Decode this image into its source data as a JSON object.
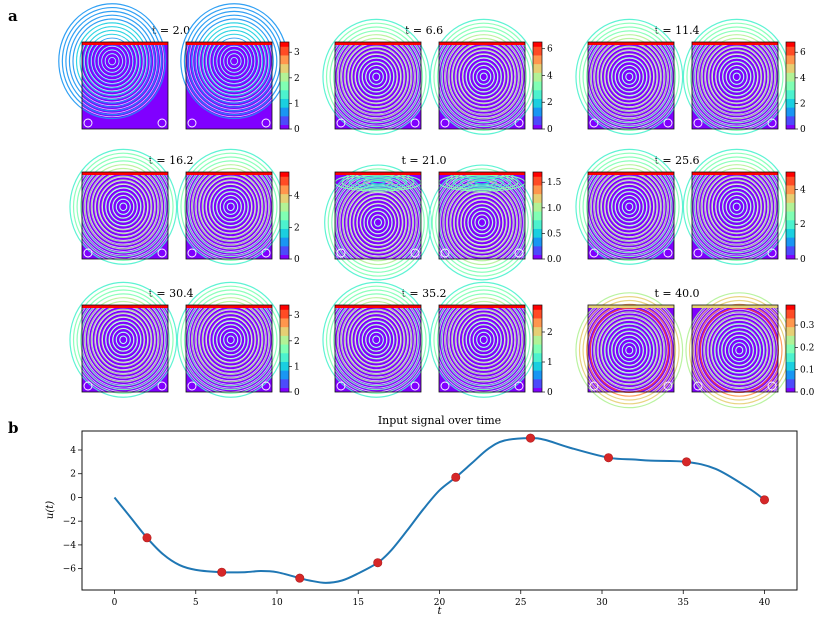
{
  "panel_a_label": "a",
  "panel_b_label": "b",
  "colormap": [
    "#8000ff",
    "#4c4bfb",
    "#1996f3",
    "#1acfe0",
    "#4cf2ce",
    "#80ffb4",
    "#b2f296",
    "#e6cf74",
    "#ff964d",
    "#ff4b25",
    "#ff0000"
  ],
  "chart_data": [
    {
      "type": "heatmap",
      "description_type": "streamline snapshots",
      "snapshots": [
        {
          "title": "t = 2.0",
          "cbar_ticks": [
            "0",
            "1",
            "2",
            "3"
          ],
          "cbar_values": [
            0,
            1,
            2,
            3
          ],
          "cbar_max": 3.4,
          "pattern": "top"
        },
        {
          "title": "t = 6.6",
          "cbar_ticks": [
            "0",
            "2",
            "4",
            "6"
          ],
          "cbar_values": [
            0,
            2,
            4,
            6
          ],
          "cbar_max": 6.5,
          "pattern": "center"
        },
        {
          "title": "t = 11.4",
          "cbar_ticks": [
            "0",
            "2",
            "4",
            "6"
          ],
          "cbar_values": [
            0,
            2,
            4,
            6
          ],
          "cbar_max": 6.8,
          "pattern": "center"
        },
        {
          "title": "t = 16.2",
          "cbar_ticks": [
            "0",
            "2",
            "4"
          ],
          "cbar_values": [
            0,
            2,
            4
          ],
          "cbar_max": 5.5,
          "pattern": "center"
        },
        {
          "title": "t = 21.0",
          "cbar_ticks": [
            "0.0",
            "0.5",
            "1.0",
            "1.5"
          ],
          "cbar_values": [
            0,
            0.5,
            1.0,
            1.5
          ],
          "cbar_max": 1.7,
          "pattern": "split"
        },
        {
          "title": "t = 25.6",
          "cbar_ticks": [
            "0",
            "2",
            "4"
          ],
          "cbar_values": [
            0,
            2,
            4
          ],
          "cbar_max": 5.0,
          "pattern": "center"
        },
        {
          "title": "t = 30.4",
          "cbar_ticks": [
            "0",
            "1",
            "2",
            "3"
          ],
          "cbar_values": [
            0,
            1,
            2,
            3
          ],
          "cbar_max": 3.4,
          "pattern": "center"
        },
        {
          "title": "t = 35.2",
          "cbar_ticks": [
            "0",
            "1",
            "2"
          ],
          "cbar_values": [
            0,
            1,
            2
          ],
          "cbar_max": 2.9,
          "pattern": "center"
        },
        {
          "title": "t = 40.0",
          "cbar_ticks": [
            "0.0",
            "0.1",
            "0.2",
            "0.3"
          ],
          "cbar_values": [
            0,
            0.1,
            0.2,
            0.3
          ],
          "cbar_max": 0.39,
          "pattern": "warm"
        }
      ]
    },
    {
      "type": "line",
      "title": "Input signal over time",
      "xlabel": "t",
      "ylabel": "u(t)",
      "xlim": [
        -2,
        42
      ],
      "ylim": [
        -7.8,
        5.6
      ],
      "xticks": [
        0,
        5,
        10,
        15,
        20,
        25,
        30,
        35,
        40
      ],
      "yticks": [
        -6,
        -4,
        -2,
        0,
        2,
        4
      ],
      "curve": {
        "x": [
          0,
          1,
          2,
          3,
          4,
          5,
          6.6,
          8,
          9,
          10,
          11.4,
          12,
          13,
          14,
          15,
          16.2,
          17,
          18,
          19,
          20,
          21,
          22,
          23,
          24,
          25.6,
          26.5,
          28,
          30.4,
          32,
          33,
          35.2,
          37,
          39,
          40
        ],
        "y": [
          0,
          -1.7,
          -3.4,
          -4.8,
          -5.7,
          -6.1,
          -6.3,
          -6.3,
          -6.2,
          -6.3,
          -6.8,
          -7.0,
          -7.2,
          -7.0,
          -6.4,
          -5.5,
          -4.5,
          -2.8,
          -1.0,
          0.6,
          1.7,
          2.9,
          4.1,
          4.8,
          5.0,
          4.85,
          4.2,
          3.35,
          3.2,
          3.1,
          3.0,
          2.4,
          0.8,
          -0.2
        ]
      },
      "markers": {
        "x": [
          2.0,
          6.6,
          11.4,
          16.2,
          21.0,
          25.6,
          30.4,
          35.2,
          40.0
        ],
        "y": [
          -3.4,
          -6.3,
          -6.8,
          -5.5,
          1.7,
          5.0,
          3.35,
          3.0,
          -0.2
        ]
      },
      "line_color": "#1f77b4",
      "marker_color": "#d62728"
    }
  ]
}
